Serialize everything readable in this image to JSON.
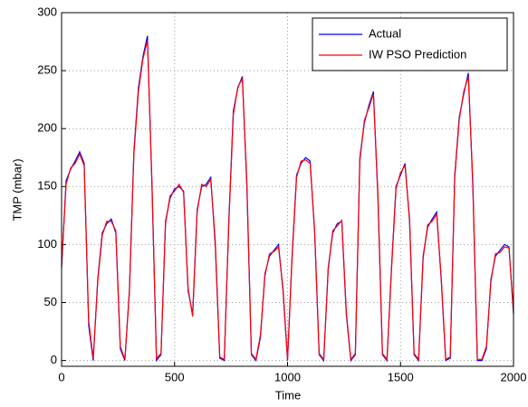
{
  "chart_data": {
    "type": "line",
    "xlabel": "Time",
    "ylabel": "TMP (mbar)",
    "x": [
      0,
      20,
      40,
      60,
      80,
      100,
      120,
      140,
      160,
      180,
      200,
      220,
      240,
      260,
      280,
      300,
      320,
      340,
      360,
      380,
      400,
      420,
      440,
      460,
      480,
      500,
      520,
      540,
      560,
      580,
      600,
      620,
      640,
      660,
      680,
      700,
      720,
      740,
      760,
      780,
      800,
      820,
      840,
      860,
      880,
      900,
      920,
      940,
      960,
      980,
      1000,
      1020,
      1040,
      1060,
      1080,
      1100,
      1120,
      1140,
      1160,
      1180,
      1200,
      1220,
      1240,
      1260,
      1280,
      1300,
      1320,
      1340,
      1360,
      1380,
      1400,
      1420,
      1440,
      1460,
      1480,
      1500,
      1520,
      1540,
      1560,
      1580,
      1600,
      1620,
      1640,
      1660,
      1680,
      1700,
      1720,
      1740,
      1760,
      1780,
      1800,
      1820,
      1840,
      1860,
      1880,
      1900,
      1920,
      1940,
      1960,
      1980,
      2000
    ],
    "series": [
      {
        "name": "Actual",
        "color": "#0000ff",
        "values": [
          80,
          155,
          165,
          172,
          180,
          170,
          30,
          0,
          70,
          110,
          118,
          122,
          110,
          10,
          0,
          60,
          180,
          235,
          262,
          280,
          150,
          0,
          5,
          120,
          140,
          148,
          150,
          146,
          60,
          40,
          130,
          150,
          152,
          158,
          100,
          2,
          0,
          120,
          215,
          235,
          245,
          150,
          5,
          0,
          20,
          75,
          90,
          95,
          100,
          60,
          0,
          90,
          160,
          170,
          175,
          172,
          110,
          5,
          0,
          80,
          110,
          118,
          120,
          40,
          0,
          5,
          175,
          205,
          220,
          232,
          140,
          5,
          0,
          80,
          150,
          160,
          170,
          120,
          5,
          0,
          90,
          115,
          122,
          128,
          70,
          0,
          2,
          160,
          210,
          230,
          248,
          150,
          0,
          0,
          10,
          70,
          90,
          95,
          100,
          98,
          40
        ]
      },
      {
        "name": "IW PSO Prediction",
        "color": "#ff0000",
        "values": [
          82,
          152,
          166,
          170,
          178,
          168,
          34,
          2,
          68,
          108,
          120,
          120,
          112,
          12,
          1,
          58,
          178,
          232,
          260,
          276,
          154,
          2,
          6,
          118,
          142,
          146,
          152,
          145,
          62,
          38,
          128,
          152,
          150,
          156,
          104,
          3,
          1,
          118,
          212,
          236,
          243,
          154,
          6,
          1,
          22,
          73,
          92,
          94,
          98,
          62,
          1,
          88,
          158,
          172,
          173,
          170,
          112,
          6,
          1,
          78,
          112,
          116,
          121,
          42,
          1,
          6,
          172,
          207,
          218,
          230,
          144,
          6,
          1,
          78,
          148,
          162,
          168,
          122,
          6,
          1,
          88,
          117,
          120,
          126,
          72,
          1,
          3,
          158,
          208,
          232,
          245,
          154,
          1,
          1,
          12,
          68,
          92,
          93,
          98,
          97,
          42
        ]
      }
    ],
    "xlim": [
      0,
      2000
    ],
    "xticks": [
      0,
      500,
      1000,
      1500,
      2000
    ],
    "ylim": [
      -5,
      300
    ],
    "yticks": [
      0,
      50,
      100,
      150,
      200,
      250,
      300
    ],
    "grid": true,
    "legend": "upper right"
  }
}
